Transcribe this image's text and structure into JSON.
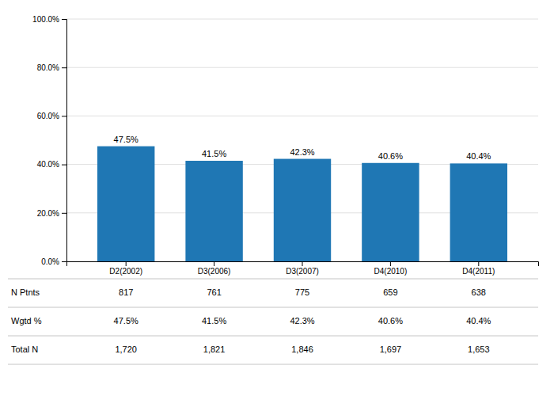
{
  "chart_data": {
    "type": "bar",
    "categories": [
      "D2(2002)",
      "D3(2006)",
      "D3(2007)",
      "D4(2010)",
      "D4(2011)"
    ],
    "values": [
      47.5,
      41.5,
      42.3,
      40.6,
      40.4
    ],
    "data_labels": true,
    "value_labels": [
      "47.5%",
      "41.5%",
      "42.3%",
      "40.6%",
      "40.4%"
    ],
    "ylim": [
      0,
      100
    ],
    "yticks": [
      {
        "value": 0,
        "label": "0.0%"
      },
      {
        "value": 20,
        "label": "20.0%"
      },
      {
        "value": 40,
        "label": "40.0%"
      },
      {
        "value": 60,
        "label": "60.0%"
      },
      {
        "value": 80,
        "label": "80.0%"
      },
      {
        "value": 100,
        "label": "100.0%"
      }
    ],
    "grid": true,
    "table": {
      "row_labels": [
        "N Ptnts",
        "Wgtd %",
        "Total N"
      ],
      "rows": [
        [
          817,
          761,
          775,
          659,
          638
        ],
        [
          "47.5%",
          "41.5%",
          "42.3%",
          "40.6%",
          "40.4%"
        ],
        [
          "1,720",
          "1,821",
          "1,846",
          "1,697",
          "1,653"
        ]
      ]
    }
  }
}
